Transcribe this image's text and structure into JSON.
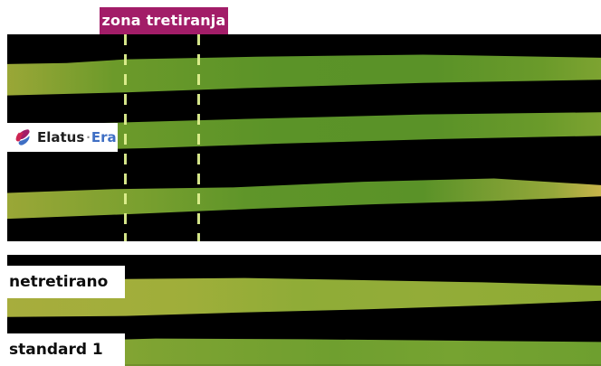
{
  "treatment_zone_label": "zona tretiranja",
  "logo": {
    "wordmark": "Elatus",
    "separator": "·",
    "suffix": "Era",
    "icon_name": "elatus-era-logo-mark",
    "colors": {
      "primary": "#a21d68",
      "secondary": "#3f6fc4"
    }
  },
  "groups": {
    "untreated_label": "netretirano",
    "standard_label": "standard 1"
  },
  "colors": {
    "tag_background": "#a21d68",
    "tag_text": "#ffffff",
    "dash_color": "#dff08f",
    "panel_background": "#000000"
  }
}
